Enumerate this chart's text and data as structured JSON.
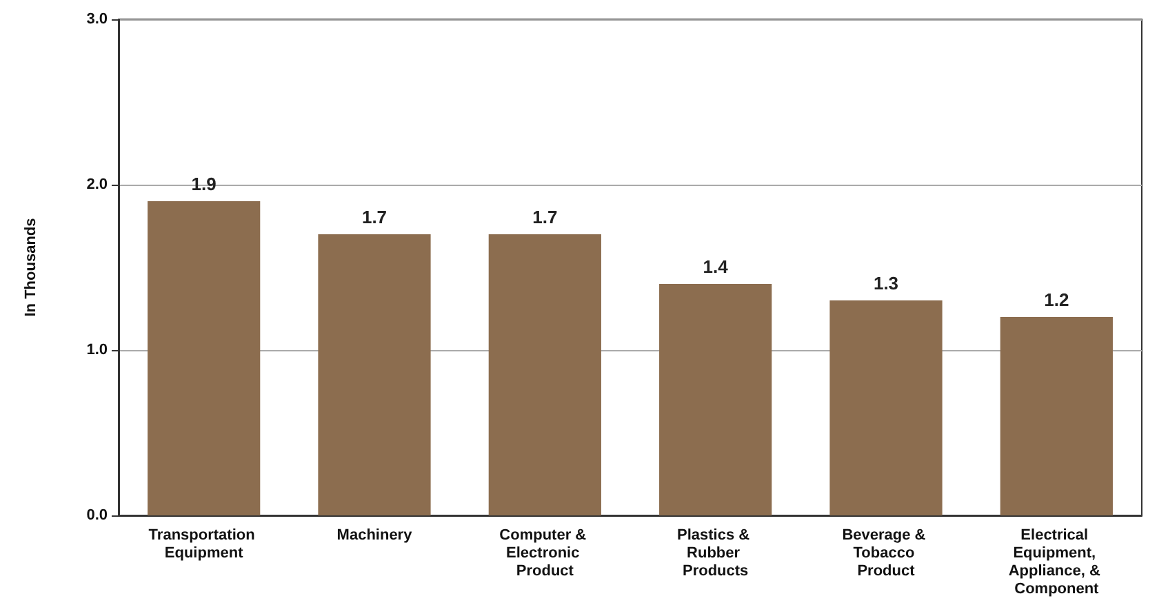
{
  "chart_data": {
    "type": "bar",
    "ylabel": "In Thousands",
    "categories": [
      "Transportation Equipment",
      "Machinery",
      "Computer & Electronic Product",
      "Plastics & Rubber Products",
      "Beverage & Tobacco Product",
      "Electrical Equipment, Appliance, & Component"
    ],
    "values": [
      1.9,
      1.7,
      1.7,
      1.4,
      1.3,
      1.2
    ],
    "color": "#8c6d4f",
    "ylim": [
      0,
      3
    ],
    "yticks": [
      {
        "value": 0,
        "label": "0.0"
      },
      {
        "value": 1,
        "label": "1.0"
      },
      {
        "value": 2,
        "label": "2.0"
      },
      {
        "value": 3,
        "label": "3.0"
      }
    ],
    "grid": "y",
    "data_labels": true
  }
}
